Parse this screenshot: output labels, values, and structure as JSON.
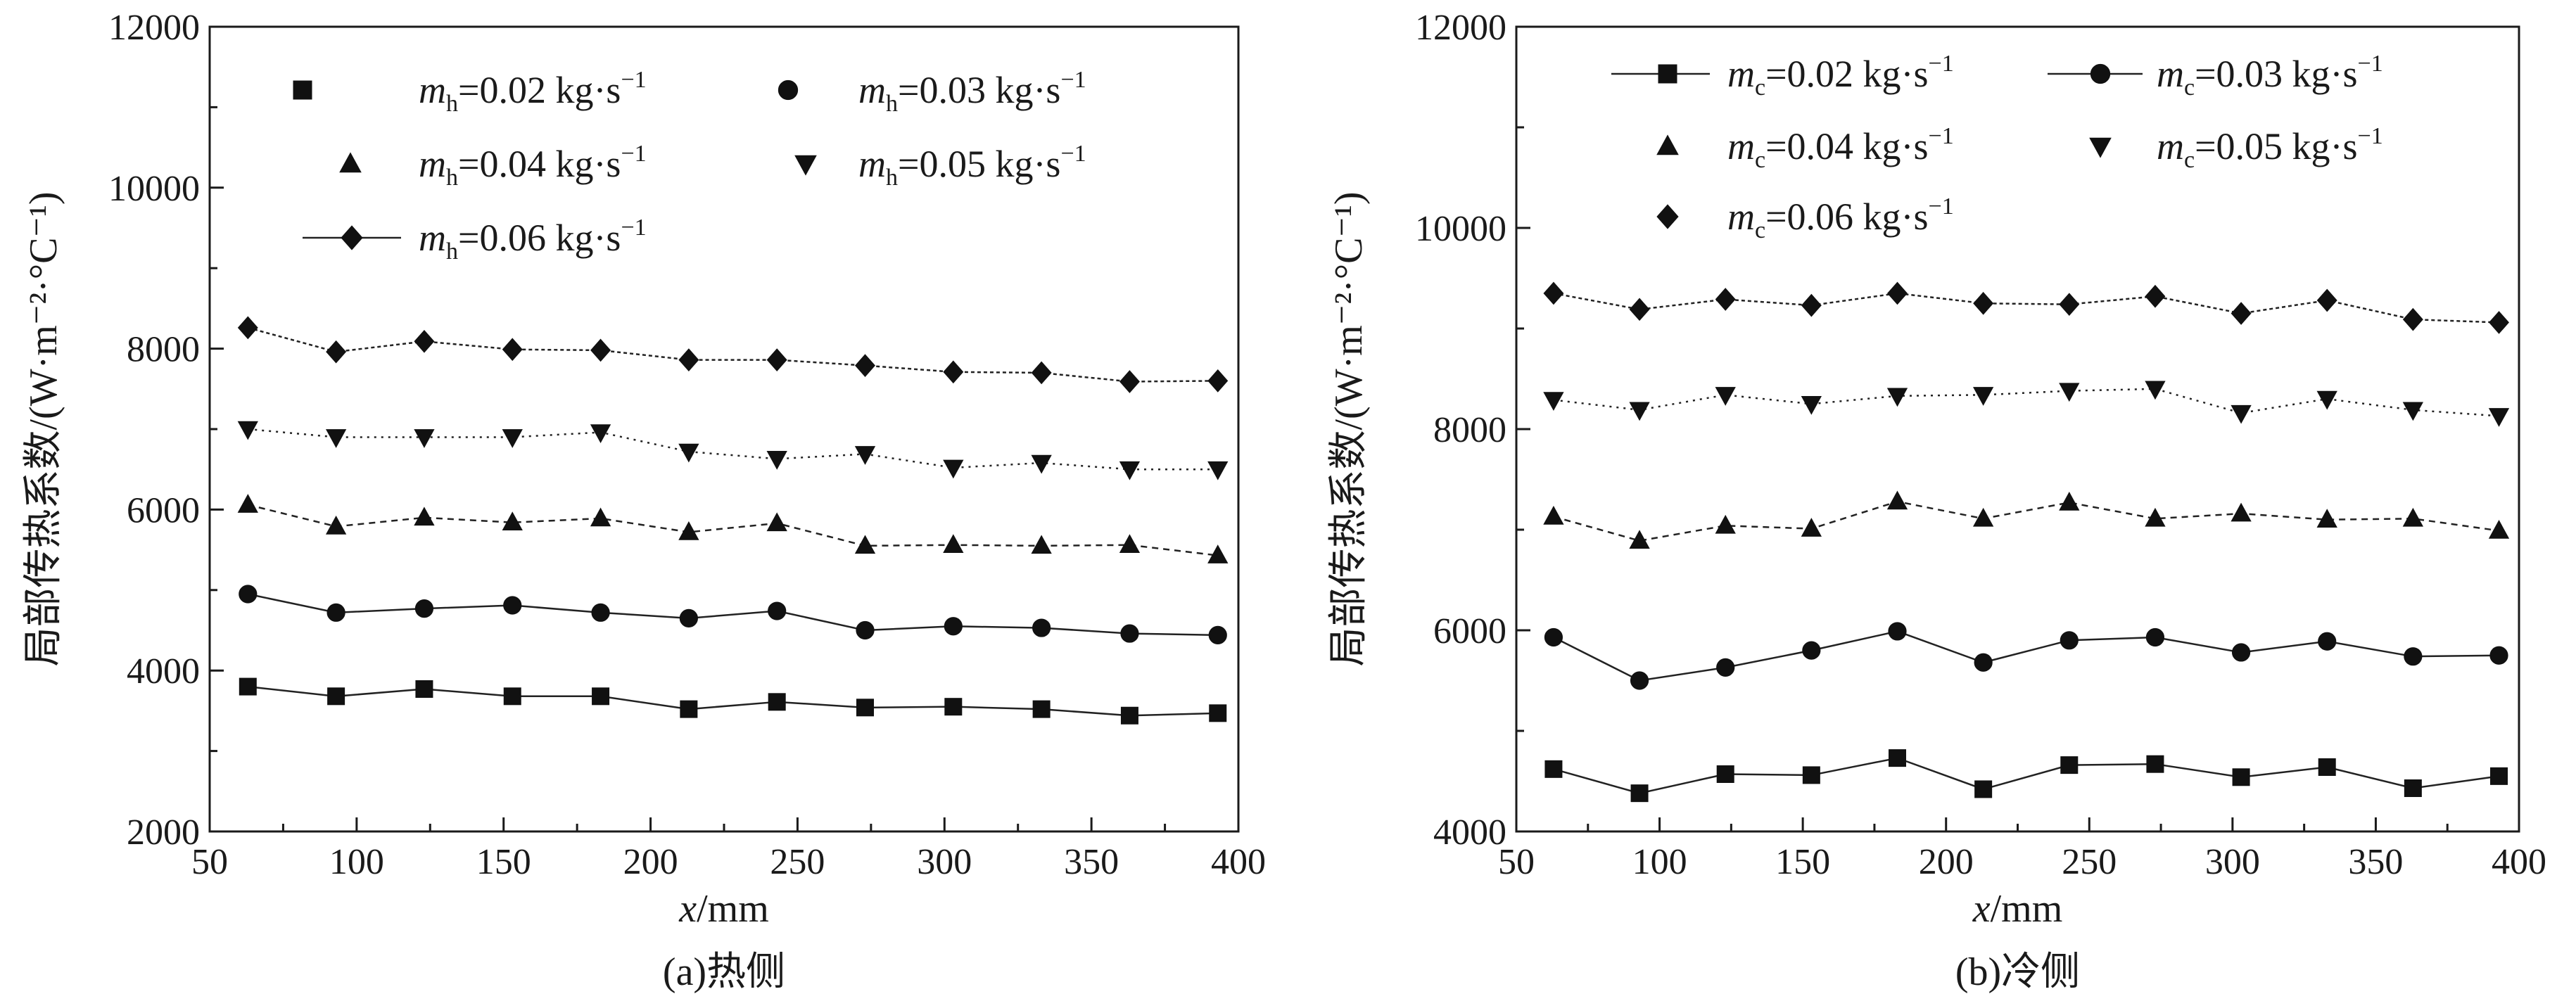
{
  "chart_data": [
    {
      "type": "line",
      "panel_caption": "(a)热侧",
      "xlabel_var": "x",
      "xlabel_unit": "/mm",
      "ylabel": "局部传热系数/(W·m⁻²·°C⁻¹)",
      "xlim": [
        50,
        400
      ],
      "ylim": [
        2000,
        12000
      ],
      "xticks": [
        50,
        100,
        150,
        200,
        250,
        300,
        350,
        400
      ],
      "yticks": [
        2000,
        4000,
        6000,
        8000,
        10000,
        12000
      ],
      "x": [
        63,
        93,
        123,
        153,
        183,
        213,
        243,
        273,
        303,
        333,
        363,
        393
      ],
      "series": [
        {
          "name": "0.02",
          "var": "m",
          "sub": "h",
          "unit": " kg·s",
          "sup": "−1",
          "marker": "square",
          "values": [
            3800,
            3680,
            3770,
            3680,
            3680,
            3520,
            3610,
            3540,
            3550,
            3520,
            3440,
            3470
          ]
        },
        {
          "name": "0.03",
          "var": "m",
          "sub": "h",
          "unit": " kg·s",
          "sup": "−1",
          "marker": "circle",
          "values": [
            4950,
            4720,
            4770,
            4810,
            4720,
            4650,
            4740,
            4500,
            4550,
            4530,
            4460,
            4440
          ]
        },
        {
          "name": "0.04",
          "var": "m",
          "sub": "h",
          "unit": " kg·s",
          "sup": "−1",
          "marker": "triangle-up",
          "values": [
            6060,
            5790,
            5900,
            5840,
            5890,
            5720,
            5830,
            5550,
            5560,
            5550,
            5560,
            5430
          ]
        },
        {
          "name": "0.05",
          "var": "m",
          "sub": "h",
          "unit": " kg·s",
          "sup": "−1",
          "marker": "triangle-down",
          "values": [
            7000,
            6900,
            6900,
            6900,
            6960,
            6720,
            6630,
            6690,
            6520,
            6580,
            6500,
            6500
          ]
        },
        {
          "name": "0.06",
          "var": "m",
          "sub": "h",
          "unit": " kg·s",
          "sup": "−1",
          "marker": "diamond",
          "values": [
            8260,
            7960,
            8090,
            7990,
            7980,
            7860,
            7860,
            7790,
            7710,
            7700,
            7590,
            7600
          ]
        }
      ]
    },
    {
      "type": "line",
      "panel_caption": "(b)冷侧",
      "xlabel_var": "x",
      "xlabel_unit": "/mm",
      "ylabel": "局部传热系数/(W·m⁻²·°C⁻¹)",
      "xlim": [
        50,
        400
      ],
      "ylim": [
        4000,
        12000
      ],
      "xticks": [
        50,
        100,
        150,
        200,
        250,
        300,
        350,
        400
      ],
      "yticks": [
        4000,
        6000,
        8000,
        10000,
        12000
      ],
      "x": [
        63,
        93,
        123,
        153,
        183,
        213,
        243,
        273,
        303,
        333,
        363,
        393
      ],
      "series": [
        {
          "name": "0.02",
          "var": "m",
          "sub": "c",
          "unit": " kg·s",
          "sup": "−1",
          "marker": "square",
          "values": [
            4620,
            4380,
            4570,
            4560,
            4730,
            4420,
            4660,
            4670,
            4540,
            4640,
            4430,
            4550
          ]
        },
        {
          "name": "0.03",
          "var": "m",
          "sub": "c",
          "unit": " kg·s",
          "sup": "−1",
          "marker": "circle",
          "values": [
            5930,
            5500,
            5630,
            5800,
            5990,
            5680,
            5900,
            5930,
            5780,
            5890,
            5740,
            5750
          ]
        },
        {
          "name": "0.04",
          "var": "m",
          "sub": "c",
          "unit": " kg·s",
          "sup": "−1",
          "marker": "triangle-up",
          "values": [
            7130,
            6890,
            7040,
            7010,
            7280,
            7110,
            7270,
            7110,
            7160,
            7100,
            7110,
            6990
          ]
        },
        {
          "name": "0.05",
          "var": "m",
          "sub": "c",
          "unit": " kg·s",
          "sup": "−1",
          "marker": "triangle-down",
          "values": [
            8290,
            8190,
            8340,
            8250,
            8330,
            8340,
            8380,
            8400,
            8160,
            8300,
            8190,
            8130
          ]
        },
        {
          "name": "0.06",
          "var": "m",
          "sub": "c",
          "unit": " kg·s",
          "sup": "−1",
          "marker": "diamond",
          "values": [
            9350,
            9190,
            9290,
            9230,
            9350,
            9250,
            9240,
            9320,
            9150,
            9280,
            9090,
            9060
          ]
        }
      ]
    }
  ]
}
